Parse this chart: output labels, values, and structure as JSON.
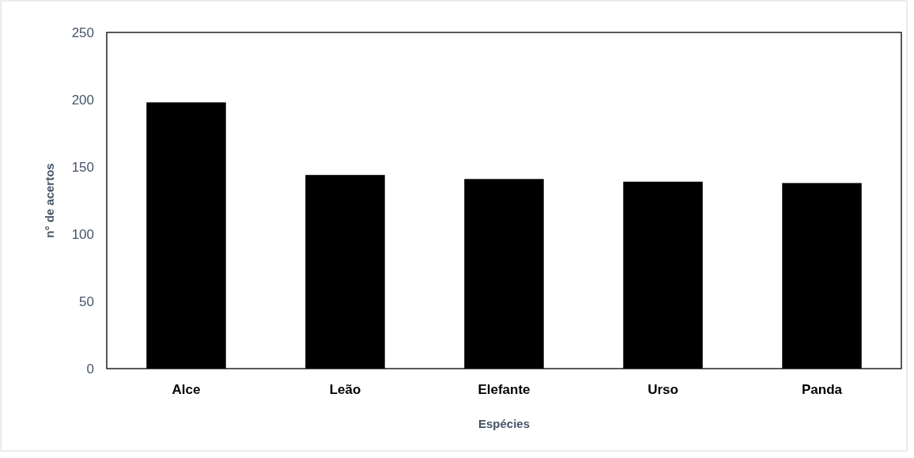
{
  "chart_data": {
    "type": "bar",
    "xlabel": "Espécies",
    "ylabel": "n° de acertos",
    "categories": [
      "Alce",
      "Leão",
      "Elefante",
      "Urso",
      "Panda"
    ],
    "values": [
      198,
      144,
      141,
      139,
      138
    ],
    "color": "#000000",
    "ylim": [
      0,
      250
    ],
    "yticks": [
      0,
      50,
      100,
      150,
      200,
      250
    ],
    "grid": false
  }
}
